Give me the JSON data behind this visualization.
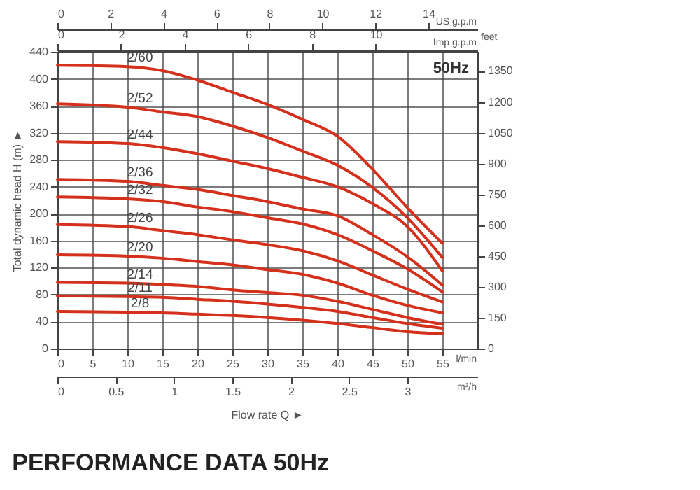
{
  "chart_data": {
    "type": "line",
    "title": "PERFORMANCE DATA 50Hz",
    "subtitle": "50Hz",
    "xlabel": "l/min",
    "ylabel": "Total dynamic head H (m) ►",
    "y2label": "feet",
    "x2label": "US g.p.m",
    "annotations": [
      "Flow rate Q ►",
      "m³/h",
      "0",
      "0.5",
      "1",
      "1.5",
      "2",
      "2.5",
      "3",
      "Imp g.p.m",
      "0",
      "2",
      "4",
      "6",
      "8",
      "10"
    ],
    "x": [
      0,
      10,
      15,
      20,
      25,
      30,
      35,
      40,
      45,
      50,
      55
    ],
    "xlim": [
      0,
      60
    ],
    "xticks": [
      0,
      5,
      10,
      15,
      20,
      25,
      30,
      35,
      40,
      45,
      50,
      55
    ],
    "x2lim": [
      0,
      15.85
    ],
    "x2ticks": [
      0,
      2,
      4,
      6,
      8,
      10,
      12,
      14
    ],
    "ylim": [
      0,
      440
    ],
    "yticks": [
      0,
      40,
      80,
      120,
      160,
      200,
      240,
      280,
      320,
      360,
      400,
      440
    ],
    "y2lim": [
      0,
      1443.6
    ],
    "y2ticks": [
      0,
      150,
      300,
      450,
      600,
      750,
      900,
      1050,
      1200,
      1350
    ],
    "grid": true,
    "series": [
      {
        "name": "2/60",
        "color": "#d4301c",
        "values": [
          420,
          418,
          412,
          398,
          380,
          362,
          340,
          315,
          266,
          209,
          156
        ]
      },
      {
        "name": "2/52",
        "color": "#d4301c",
        "values": [
          363,
          358,
          351,
          344,
          330,
          313,
          293,
          272,
          239,
          194,
          135
        ]
      },
      {
        "name": "2/44",
        "color": "#d4301c",
        "values": [
          307,
          304,
          298,
          289,
          278,
          267,
          254,
          240,
          215,
          181,
          115
        ]
      },
      {
        "name": "2/36",
        "color": "#d4301c",
        "values": [
          251,
          248,
          242,
          236,
          227,
          218,
          207,
          197,
          169,
          136,
          94
        ]
      },
      {
        "name": "2/32",
        "color": "#d4301c",
        "values": [
          225,
          222,
          218,
          210,
          203,
          194,
          185,
          169,
          145,
          118,
          84
        ]
      },
      {
        "name": "2/26",
        "color": "#d4301c",
        "values": [
          184,
          181,
          175,
          169,
          161,
          154,
          145,
          130,
          109,
          88,
          69
        ]
      },
      {
        "name": "2/20",
        "color": "#d4301c",
        "values": [
          139,
          137,
          134,
          129,
          124,
          117,
          110,
          97,
          79,
          64,
          53
        ]
      },
      {
        "name": "2/14",
        "color": "#d4301c",
        "values": [
          98,
          97,
          95,
          92,
          87,
          83,
          79,
          70,
          58,
          46,
          36
        ]
      },
      {
        "name": "2/11",
        "color": "#d4301c",
        "values": [
          78,
          77,
          76,
          73,
          70,
          66,
          61,
          55,
          46,
          37,
          30
        ]
      },
      {
        "name": "2/8",
        "color": "#d4301c",
        "values": [
          55,
          54,
          53,
          51,
          49,
          46,
          42,
          37,
          31,
          25,
          22
        ]
      }
    ]
  }
}
